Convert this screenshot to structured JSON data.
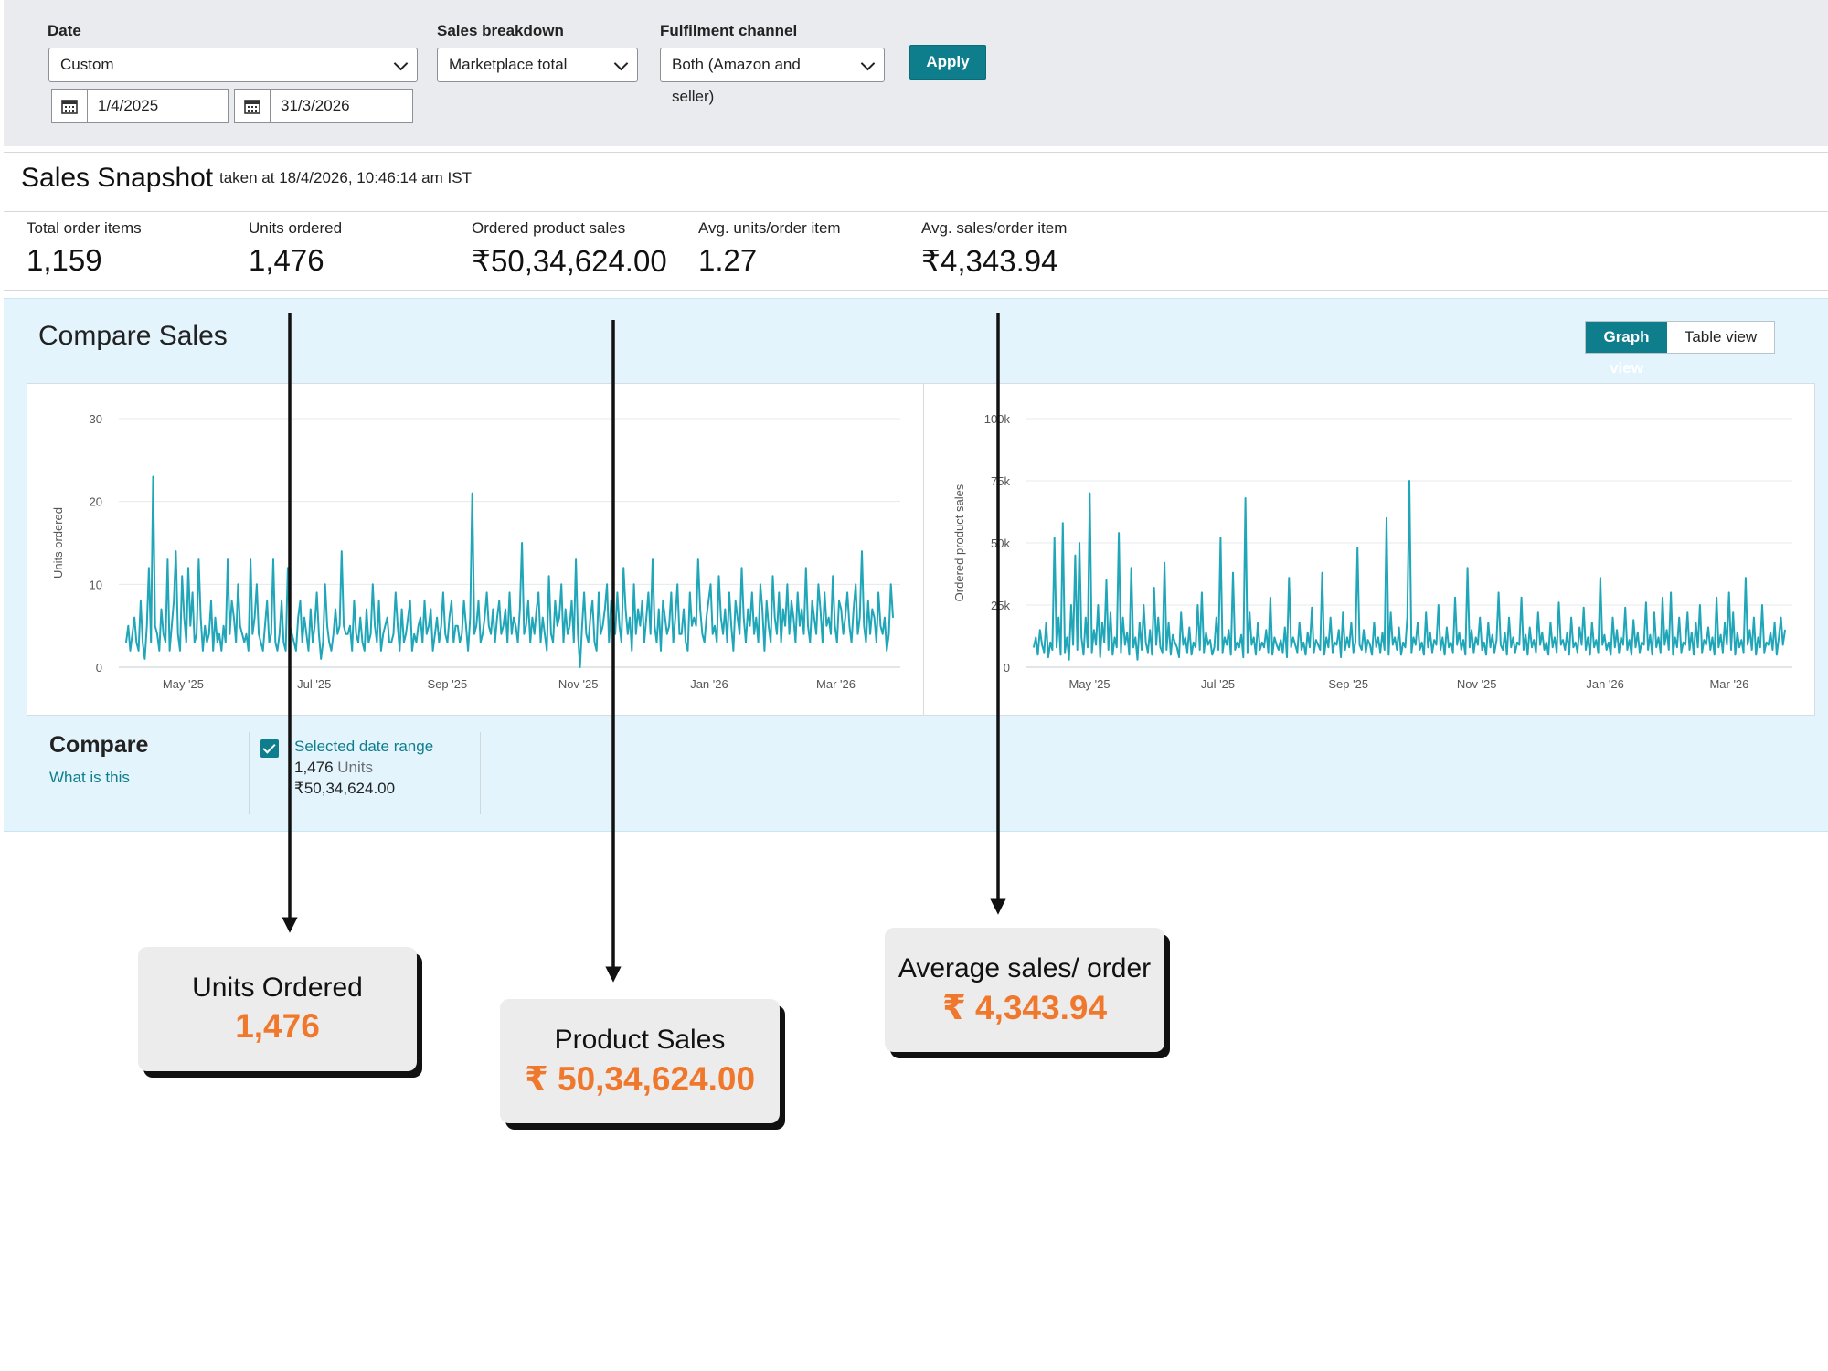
{
  "filters": {
    "date": {
      "label": "Date",
      "value": "Custom",
      "from": "1/4/2025",
      "to": "31/3/2026"
    },
    "sales_breakdown": {
      "label": "Sales breakdown",
      "value": "Marketplace total"
    },
    "fulfilment": {
      "label": "Fulfilment channel",
      "value": "Both (Amazon and seller)"
    },
    "apply_label": "Apply"
  },
  "snapshot": {
    "title": "Sales Snapshot",
    "taken": "taken at 18/4/2026, 10:46:14 am IST",
    "metrics": [
      {
        "label": "Total order items",
        "value": "1,159"
      },
      {
        "label": "Units ordered",
        "value": "1,476"
      },
      {
        "label": "Ordered product sales",
        "value": "₹50,34,624.00"
      },
      {
        "label": "Avg. units/order item",
        "value": "1.27"
      },
      {
        "label": "Avg. sales/order item",
        "value": "₹4,343.94"
      }
    ]
  },
  "compare_sales": {
    "title": "Compare Sales",
    "graph_view_label": "Graph view",
    "table_view_label": "Table view",
    "compare": {
      "title": "Compare",
      "what_is_this": "What is this",
      "range_label": "Selected date range",
      "units_value": "1,476",
      "units_word": "Units",
      "sales_value": "₹50,34,624.00"
    }
  },
  "chart_data": [
    {
      "type": "line",
      "ylabel": "Units ordered",
      "ylim": [
        0,
        30
      ],
      "yticks": [
        "0",
        "10",
        "20",
        "30"
      ],
      "xticks": [
        "May '25",
        "Jul '25",
        "Sep '25",
        "Nov '25",
        "Jan '26",
        "Mar '26"
      ],
      "x_start": "2025-04-01",
      "x_end": "2026-03-31",
      "series": [
        {
          "color": "#1fa6b8",
          "values": [
            3,
            5,
            2,
            4,
            6,
            3,
            2,
            8,
            3,
            1,
            5,
            12,
            3,
            23,
            5,
            4,
            2,
            7,
            4,
            3,
            13,
            2,
            5,
            8,
            14,
            4,
            2,
            11,
            6,
            3,
            12,
            5,
            9,
            3,
            4,
            13,
            6,
            2,
            5,
            3,
            4,
            8,
            2,
            6,
            3,
            4,
            2,
            5,
            3,
            13,
            4,
            8,
            6,
            3,
            10,
            5,
            4,
            3,
            4,
            2,
            13,
            4,
            6,
            10,
            4,
            3,
            2,
            5,
            8,
            3,
            4,
            13,
            3,
            2,
            4,
            8,
            3,
            2,
            12,
            5,
            4,
            3,
            2,
            6,
            8,
            3,
            6,
            4,
            2,
            7,
            3,
            5,
            9,
            4,
            1,
            3,
            10,
            5,
            3,
            2,
            4,
            7,
            4,
            5,
            14,
            5,
            4,
            4,
            5,
            2,
            8,
            4,
            3,
            6,
            3,
            2,
            7,
            3,
            4,
            10,
            5,
            3,
            8,
            2,
            4,
            5,
            6,
            3,
            3,
            4,
            9,
            5,
            2,
            7,
            3,
            4,
            6,
            8,
            2,
            4,
            3,
            5,
            6,
            3,
            8,
            4,
            5,
            7,
            2,
            4,
            6,
            3,
            5,
            9,
            4,
            3,
            6,
            8,
            3,
            5,
            5,
            3,
            4,
            8,
            5,
            2,
            6,
            21,
            4,
            5,
            8,
            3,
            4,
            6,
            9,
            5,
            4,
            7,
            3,
            6,
            8,
            4,
            5,
            7,
            3,
            9,
            4,
            6,
            5,
            3,
            7,
            15,
            4,
            5,
            8,
            3,
            6,
            4,
            7,
            9,
            3,
            6,
            4,
            2,
            11,
            4,
            3,
            8,
            5,
            6,
            10,
            3,
            7,
            4,
            5,
            8,
            3,
            13,
            4,
            0,
            5,
            9,
            4,
            3,
            6,
            8,
            3,
            2,
            9,
            4,
            5,
            7,
            10,
            3,
            8,
            6,
            4,
            9,
            5,
            3,
            12,
            7,
            4,
            6,
            2,
            10,
            4,
            7,
            5,
            8,
            3,
            6,
            9,
            4,
            13,
            5,
            3,
            7,
            2,
            8,
            6,
            4,
            5,
            9,
            3,
            6,
            10,
            4,
            4,
            7,
            3,
            2,
            9,
            5,
            6,
            5,
            13,
            7,
            4,
            3,
            6,
            8,
            10,
            4,
            5,
            3,
            11,
            6,
            4,
            7,
            3,
            9,
            5,
            2,
            8,
            6,
            4,
            12,
            6,
            3,
            7,
            5,
            9,
            4,
            6,
            3,
            10,
            7,
            2,
            8,
            5,
            3,
            11,
            6,
            4,
            9,
            3,
            7,
            5,
            10,
            4,
            8,
            6,
            3,
            9,
            5,
            7,
            4,
            12,
            5,
            3,
            8,
            6,
            4,
            10,
            7,
            3,
            9,
            5,
            6,
            4,
            11,
            5,
            3,
            8,
            7,
            4,
            6,
            9,
            5,
            3,
            7,
            10,
            4,
            6,
            14,
            5,
            3,
            8,
            4,
            7,
            6,
            3,
            9,
            5,
            4,
            6,
            2,
            4,
            10,
            6
          ]
        }
      ]
    },
    {
      "type": "line",
      "ylabel": "Ordered product sales",
      "ylim": [
        0,
        100000
      ],
      "yticks": [
        "0",
        "25k",
        "50k",
        "75k",
        "100k"
      ],
      "xticks": [
        "May '25",
        "Jul '25",
        "Sep '25",
        "Nov '25",
        "Jan '26",
        "Mar '26"
      ],
      "x_start": "2025-04-01",
      "x_end": "2026-03-31",
      "series": [
        {
          "color": "#1fa6b8",
          "values": [
            8000,
            12000,
            5000,
            15000,
            9000,
            6000,
            18000,
            4000,
            10000,
            7000,
            52000,
            8000,
            20000,
            5000,
            58000,
            6000,
            12000,
            3000,
            25000,
            9000,
            45000,
            7000,
            50000,
            12000,
            5000,
            20000,
            8000,
            70000,
            6000,
            15000,
            9000,
            25000,
            4000,
            18000,
            10000,
            35000,
            7000,
            22000,
            5000,
            12000,
            8000,
            54000,
            6000,
            20000,
            9000,
            14000,
            5000,
            40000,
            8000,
            12000,
            3000,
            18000,
            7000,
            25000,
            10000,
            6000,
            15000,
            5000,
            32000,
            9000,
            20000,
            8000,
            6000,
            42000,
            7000,
            18000,
            5000,
            13000,
            10000,
            8000,
            4000,
            22000,
            9000,
            12000,
            6000,
            16000,
            5000,
            10000,
            8000,
            25000,
            7000,
            30000,
            6000,
            14000,
            9000,
            11000,
            5000,
            8000,
            20000,
            7000,
            52000,
            6000,
            12000,
            9000,
            15000,
            5000,
            38000,
            7000,
            10000,
            8000,
            13000,
            4000,
            68000,
            6000,
            22000,
            9000,
            12000,
            5000,
            18000,
            7000,
            10000,
            8000,
            15000,
            6000,
            28000,
            5000,
            12000,
            9000,
            7000,
            11000,
            6000,
            16000,
            4000,
            36000,
            8000,
            12000,
            9000,
            6000,
            18000,
            7000,
            10000,
            5000,
            14000,
            8000,
            24000,
            6000,
            11000,
            9000,
            7000,
            38000,
            5000,
            12000,
            8000,
            20000,
            6000,
            10000,
            9000,
            15000,
            4000,
            22000,
            7000,
            12000,
            8000,
            18000,
            6000,
            10000,
            48000,
            9000,
            7000,
            15000,
            6000,
            11000,
            9000,
            5000,
            18000,
            8000,
            12000,
            6000,
            14000,
            7000,
            60000,
            5000,
            22000,
            9000,
            12000,
            7000,
            16000,
            5000,
            10000,
            8000,
            20000,
            75000,
            6000,
            12000,
            9000,
            18000,
            7000,
            10000,
            5000,
            22000,
            8000,
            14000,
            6000,
            11000,
            9000,
            25000,
            7000,
            12000,
            5000,
            16000,
            8000,
            10000,
            6000,
            28000,
            9000,
            14000,
            7000,
            11000,
            5000,
            40000,
            8000,
            15000,
            6000,
            12000,
            9000,
            20000,
            7000,
            10000,
            5000,
            18000,
            8000,
            13000,
            6000,
            11000,
            30000,
            9000,
            7000,
            14000,
            5000,
            20000,
            8000,
            12000,
            6000,
            10000,
            9000,
            28000,
            7000,
            13000,
            5000,
            16000,
            8000,
            11000,
            6000,
            22000,
            9000,
            14000,
            7000,
            10000,
            5000,
            18000,
            8000,
            12000,
            6000,
            26000,
            9000,
            11000,
            7000,
            14000,
            5000,
            20000,
            8000,
            10000,
            6000,
            16000,
            9000,
            24000,
            7000,
            12000,
            5000,
            18000,
            8000,
            11000,
            6000,
            36000,
            9000,
            13000,
            7000,
            10000,
            5000,
            20000,
            8000,
            15000,
            6000,
            12000,
            9000,
            24000,
            7000,
            11000,
            5000,
            19000,
            8000,
            14000,
            6000,
            10000,
            9000,
            26000,
            7000,
            13000,
            5000,
            22000,
            8000,
            12000,
            6000,
            28000,
            9000,
            15000,
            7000,
            30000,
            5000,
            12000,
            8000,
            20000,
            6000,
            10000,
            9000,
            22000,
            7000,
            14000,
            5000,
            18000,
            8000,
            25000,
            6000,
            11000,
            9000,
            16000,
            7000,
            12000,
            5000,
            28000,
            8000,
            13000,
            6000,
            18000,
            9000,
            30000,
            7000,
            22000,
            5000,
            14000,
            8000,
            11000,
            6000,
            36000,
            9000,
            15000,
            7000,
            20000,
            5000,
            12000,
            8000,
            25000,
            6000,
            10000,
            9000,
            14000,
            7000,
            18000,
            5000,
            12000,
            20000,
            9000,
            15000
          ]
        }
      ]
    }
  ],
  "callouts": [
    {
      "title": "Units Ordered",
      "value": "1,476"
    },
    {
      "title": "Product Sales",
      "value": "₹ 50,34,624.00"
    },
    {
      "title": "Average sales/ order",
      "value": "₹ 4,343.94"
    }
  ]
}
